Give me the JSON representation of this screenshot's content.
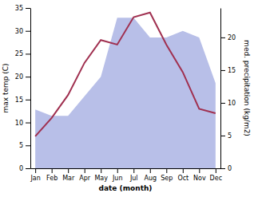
{
  "chart_data": {
    "type": "line",
    "x_label": "date (month)",
    "y_label": "max temp (C)",
    "y2_label": "med. precipitation (kg/m2)",
    "categories": [
      "Jan",
      "Feb",
      "Mar",
      "Apr",
      "May",
      "Jun",
      "Jul",
      "Aug",
      "Sep",
      "Oct",
      "Nov",
      "Dec"
    ],
    "series": [
      {
        "type": "area",
        "axis": "y2",
        "color": "#b8bfe8",
        "values": [
          9,
          8,
          8,
          11,
          14,
          23,
          23,
          20,
          20,
          21,
          20,
          13
        ]
      },
      {
        "type": "line",
        "color": "#a03050",
        "values": [
          7,
          11,
          16,
          23,
          28,
          27,
          33,
          34,
          27,
          21,
          13,
          12
        ]
      }
    ],
    "ylim": [
      0,
      35
    ],
    "yticks": [
      0,
      5,
      10,
      15,
      20,
      25,
      30,
      35
    ],
    "y2lim": [
      0,
      24.5
    ],
    "y2ticks": [
      0,
      5,
      10,
      15,
      20
    ],
    "grid": false
  }
}
